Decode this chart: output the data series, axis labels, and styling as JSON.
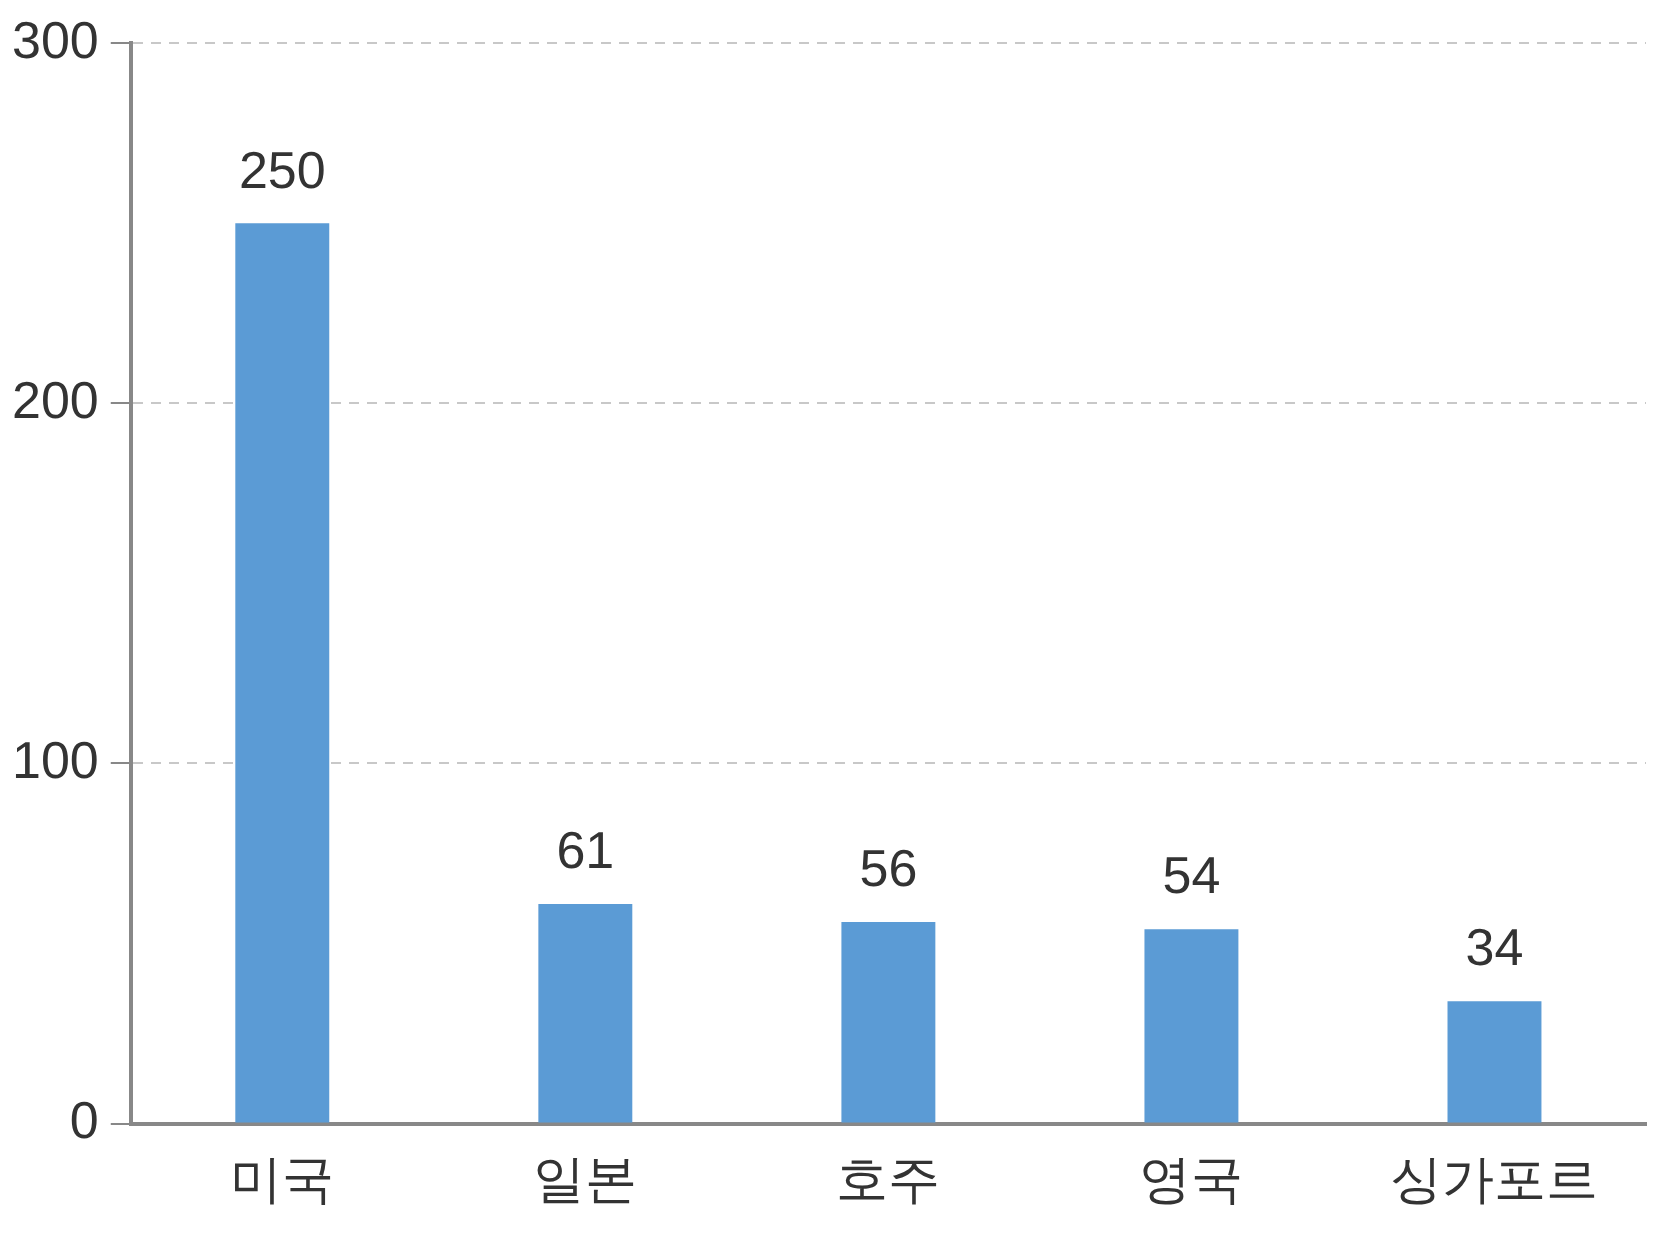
{
  "chart_data": {
    "type": "bar",
    "categories": [
      "미국",
      "일본",
      "호주",
      "영국",
      "싱가포르"
    ],
    "values": [
      250,
      61,
      56,
      54,
      34
    ],
    "color": "#5b9bd5",
    "ylim": [
      0,
      300
    ],
    "yticks": [
      0,
      100,
      200,
      300
    ],
    "grid": "y",
    "data_labels": true
  }
}
